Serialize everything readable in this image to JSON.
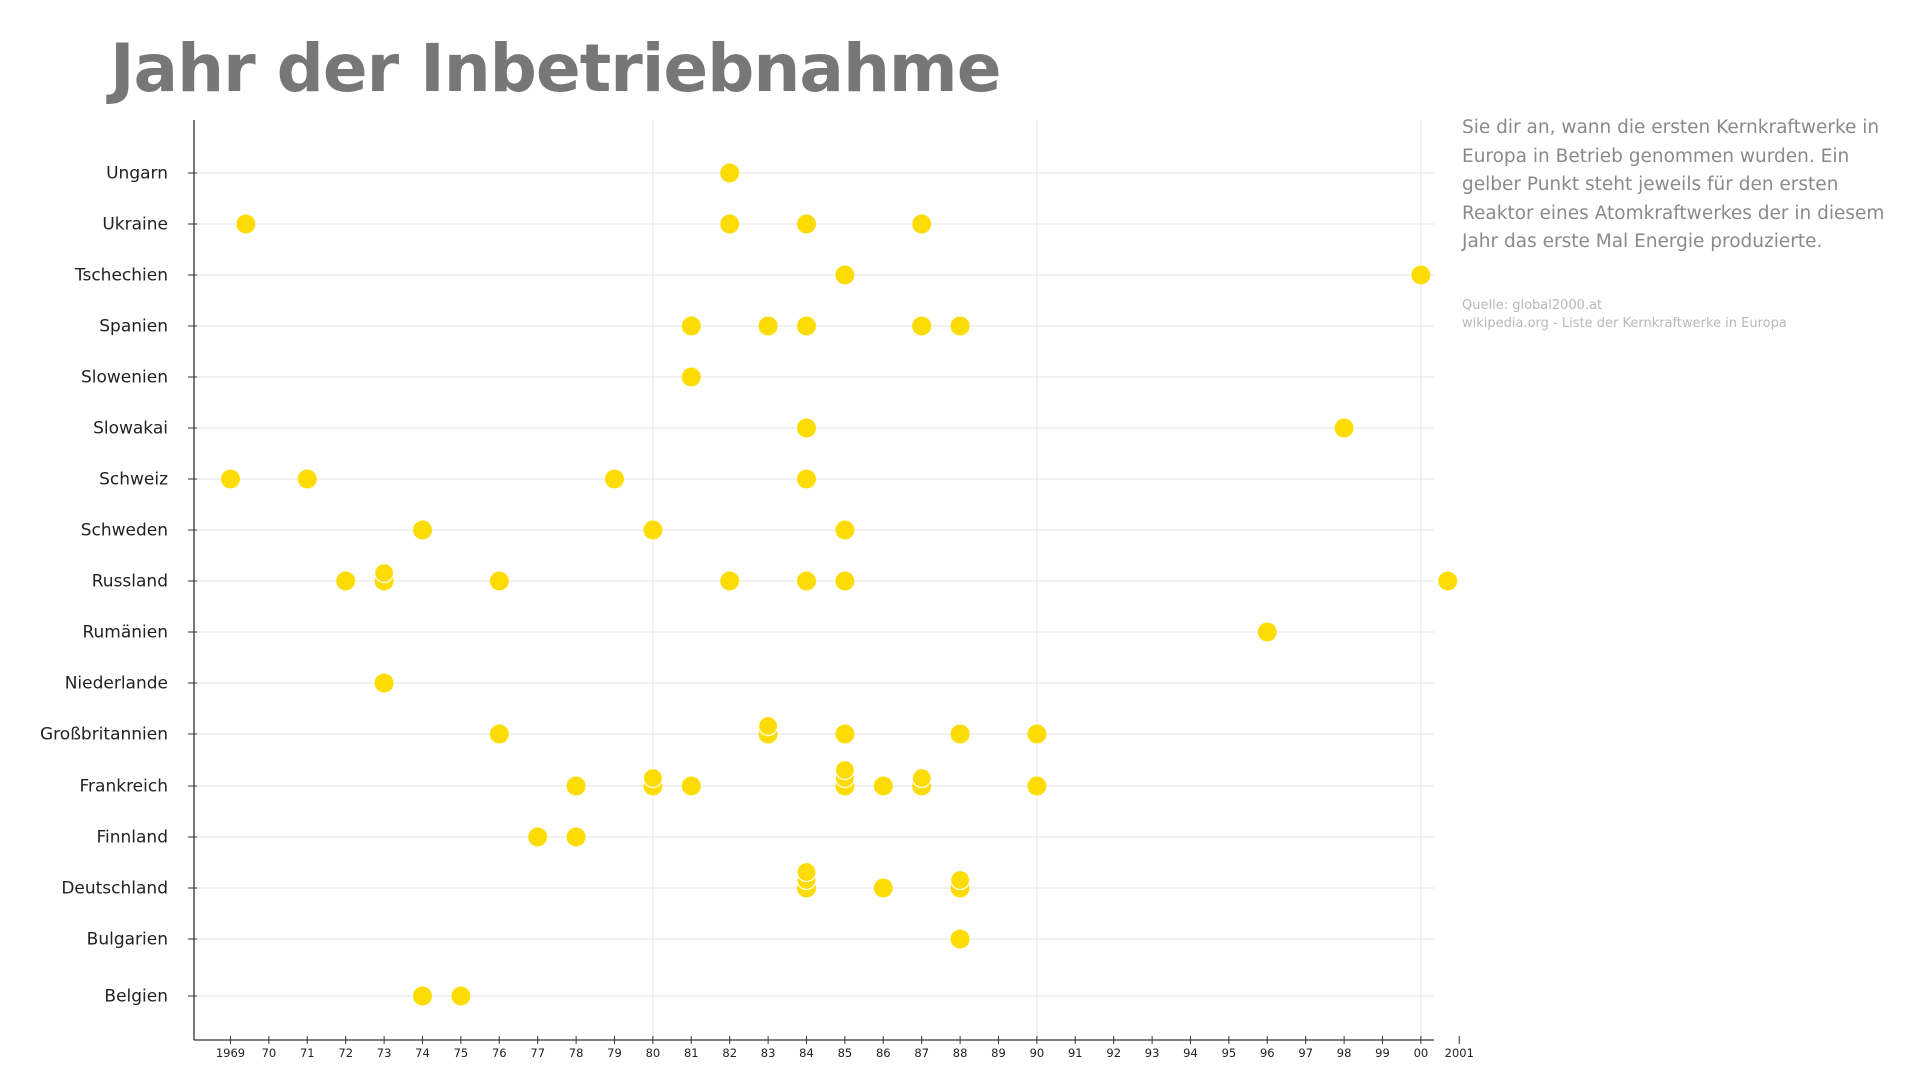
{
  "title": "Jahr der Inbetriebnahme",
  "description": "Sie dir an, wann die ersten Kernkraftwerke in Europa in Betrieb genommen wurden. Ein gelber Punkt steht jeweils für den ersten Reaktor eines Atomkraftwerkes der in diesem Jahr das erste Mal Energie produzierte.",
  "source": {
    "line1": "Quelle: global2000.at",
    "line2": "wikipedia.org - Liste der Kernkraftwerke in Europa"
  },
  "colors": {
    "dot": "#FDDC05",
    "grid": "#e6e6e6",
    "axis": "#333333",
    "title": "#777777"
  },
  "chart_data": {
    "type": "scatter",
    "title": "Jahr der Inbetriebnahme",
    "xlabel": "",
    "ylabel": "",
    "xlim": [
      1968.1,
      2000.7
    ],
    "grid": true,
    "x_tick_labels": [
      {
        "year": 1969,
        "label": "1969"
      },
      {
        "year": 1970,
        "label": "70"
      },
      {
        "year": 1971,
        "label": "71"
      },
      {
        "year": 1972,
        "label": "72"
      },
      {
        "year": 1973,
        "label": "73"
      },
      {
        "year": 1974,
        "label": "74"
      },
      {
        "year": 1975,
        "label": "75"
      },
      {
        "year": 1976,
        "label": "76"
      },
      {
        "year": 1977,
        "label": "77"
      },
      {
        "year": 1978,
        "label": "78"
      },
      {
        "year": 1979,
        "label": "79"
      },
      {
        "year": 1980,
        "label": "80"
      },
      {
        "year": 1981,
        "label": "81"
      },
      {
        "year": 1982,
        "label": "82"
      },
      {
        "year": 1983,
        "label": "83"
      },
      {
        "year": 1984,
        "label": "84"
      },
      {
        "year": 1985,
        "label": "85"
      },
      {
        "year": 1986,
        "label": "86"
      },
      {
        "year": 1987,
        "label": "87"
      },
      {
        "year": 1988,
        "label": "88"
      },
      {
        "year": 1989,
        "label": "89"
      },
      {
        "year": 1990,
        "label": "90"
      },
      {
        "year": 1991,
        "label": "91"
      },
      {
        "year": 1992,
        "label": "92"
      },
      {
        "year": 1993,
        "label": "93"
      },
      {
        "year": 1994,
        "label": "94"
      },
      {
        "year": 1995,
        "label": "95"
      },
      {
        "year": 1996,
        "label": "96"
      },
      {
        "year": 1997,
        "label": "97"
      },
      {
        "year": 1998,
        "label": "98"
      },
      {
        "year": 1999,
        "label": "99"
      },
      {
        "year": 2000,
        "label": "00"
      },
      {
        "year": 2001,
        "label": "2001"
      }
    ],
    "vertical_gridlines": [
      1980,
      1990,
      2000
    ],
    "countries": [
      {
        "name": "Ungarn",
        "years": [
          1982
        ]
      },
      {
        "name": "Ukraine",
        "years": [
          1969.4,
          1982,
          1984,
          1987
        ]
      },
      {
        "name": "Tschechien",
        "years": [
          1985,
          2000
        ]
      },
      {
        "name": "Spanien",
        "years": [
          1981,
          1983,
          1984,
          1987,
          1988
        ]
      },
      {
        "name": "Slowenien",
        "years": [
          1981
        ]
      },
      {
        "name": "Slowakai",
        "years": [
          1984,
          1998
        ]
      },
      {
        "name": "Schweiz",
        "years": [
          1969,
          1971,
          1979,
          1984
        ]
      },
      {
        "name": "Schweden",
        "years": [
          1974,
          1980,
          1985
        ]
      },
      {
        "name": "Russland",
        "years": [
          1972,
          1973,
          1973,
          1976,
          1982,
          1984,
          1985,
          2000.7
        ]
      },
      {
        "name": "Rumänien",
        "years": [
          1996
        ]
      },
      {
        "name": "Niederlande",
        "years": [
          1973
        ]
      },
      {
        "name": "Großbritannien",
        "years": [
          1976,
          1983,
          1983,
          1985,
          1988,
          1990
        ]
      },
      {
        "name": "Frankreich",
        "years": [
          1978,
          1980,
          1980,
          1981,
          1985,
          1985,
          1985,
          1986,
          1987,
          1987,
          1990
        ]
      },
      {
        "name": "Finnland",
        "years": [
          1977,
          1978
        ]
      },
      {
        "name": "Deutschland",
        "years": [
          1984,
          1984,
          1984,
          1986,
          1988,
          1988
        ]
      },
      {
        "name": "Bulgarien",
        "years": [
          1988
        ]
      },
      {
        "name": "Belgien",
        "years": [
          1974,
          1975
        ]
      }
    ]
  }
}
